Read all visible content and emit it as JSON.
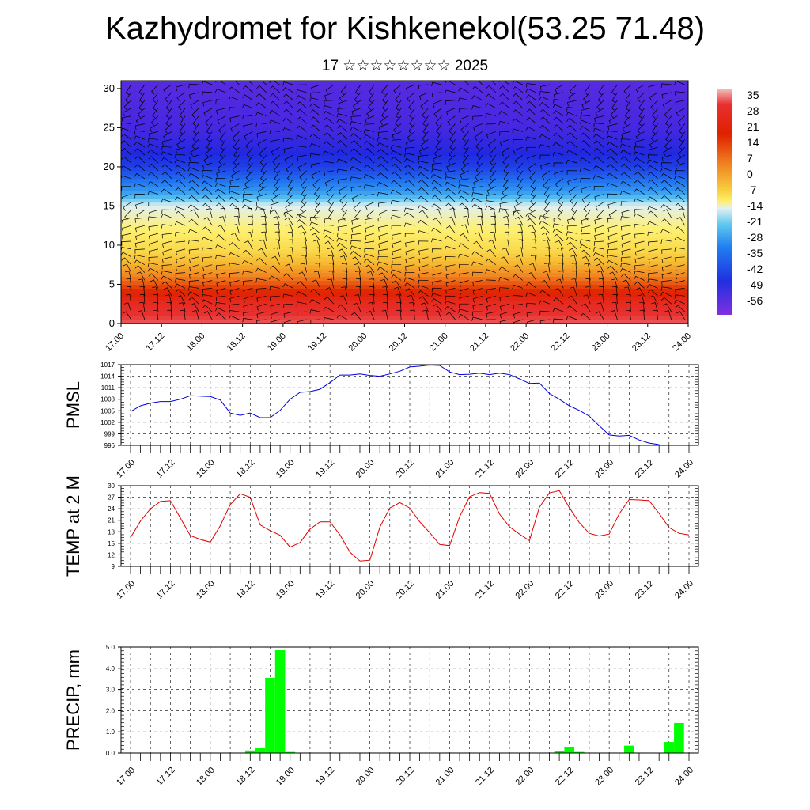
{
  "page": {
    "title": "Kazhydromet for Kishkenekol(53.25 71.48)",
    "subtitle": "17 ☆☆☆☆☆☆☆☆ 2025"
  },
  "colors": {
    "pressure_line": "#0000dd",
    "temperature_line": "#e00000",
    "precip_bar": "#00ff00",
    "wind_barbs": "#000000"
  },
  "chart_data": [
    {
      "type": "heatmap",
      "name": "cross-section",
      "description_values": "temperature colour field with wind barbs",
      "x_ticks": [
        "17.00",
        "17.12",
        "18.00",
        "18.12",
        "19.00",
        "19.12",
        "20.00",
        "20.12",
        "21.00",
        "21.12",
        "22.00",
        "22.12",
        "23.00",
        "23.12",
        "24.00"
      ],
      "y_ticks": [
        0,
        5,
        10,
        15,
        20,
        25,
        30
      ],
      "ylim": [
        0,
        31
      ],
      "colorbar_labels": [
        "35",
        "28",
        "21",
        "14",
        "7",
        "0",
        "-7",
        "-14",
        "-21",
        "-28",
        "-35",
        "-42",
        "-49",
        "-56"
      ],
      "temperature_profile": [
        {
          "level": 0,
          "value": 30
        },
        {
          "level": 3,
          "value": 25
        },
        {
          "level": 6,
          "value": 14
        },
        {
          "level": 9,
          "value": 2
        },
        {
          "level": 12,
          "value": -7
        },
        {
          "level": 15,
          "value": -14
        },
        {
          "level": 16.5,
          "value": -25
        },
        {
          "level": 19,
          "value": -38
        },
        {
          "level": 22,
          "value": -50
        },
        {
          "level": 25,
          "value": -56
        },
        {
          "level": 31,
          "value": -58
        }
      ]
    },
    {
      "type": "line",
      "name": "pmsl",
      "ylabel": "PMSL",
      "x_ticks": [
        "17.00",
        "17.12",
        "18.00",
        "18.12",
        "19.00",
        "19.12",
        "20.00",
        "20.12",
        "21.00",
        "21.12",
        "22.00",
        "22.12",
        "23.00",
        "23.12",
        "24.00"
      ],
      "y_ticks": [
        996,
        999,
        1002,
        1005,
        1008,
        1011,
        1014,
        1017
      ],
      "ylim": [
        996,
        1017
      ],
      "x": [
        0,
        3,
        6,
        9,
        12,
        15,
        18,
        21,
        24,
        27,
        30,
        33,
        36,
        39,
        42,
        45,
        48,
        51,
        54,
        57,
        60,
        63,
        66,
        69,
        72,
        75,
        78,
        81,
        84,
        87,
        90,
        93,
        96,
        99,
        102,
        105,
        108,
        111,
        114,
        117,
        120,
        123,
        126,
        129,
        132,
        135,
        138,
        141,
        144,
        147,
        150,
        153,
        156,
        159,
        162,
        165,
        168
      ],
      "values": [
        1004.8,
        1006.3,
        1007.0,
        1007.4,
        1007.4,
        1008.0,
        1008.9,
        1008.8,
        1008.7,
        1007.8,
        1004.4,
        1003.8,
        1004.4,
        1003.2,
        1003.2,
        1005.1,
        1008.0,
        1009.8,
        1010.0,
        1010.6,
        1012.3,
        1014.3,
        1014.3,
        1014.6,
        1014.2,
        1014.0,
        1014.6,
        1015.3,
        1016.4,
        1016.6,
        1016.9,
        1016.8,
        1015.1,
        1014.4,
        1014.5,
        1014.8,
        1014.4,
        1014.8,
        1014.4,
        1013.3,
        1012.1,
        1012.2,
        1009.5,
        1008.0,
        1006.3,
        1005.1,
        1003.6,
        1001.1,
        998.7,
        998.4,
        998.6,
        997.4,
        996.6,
        996.2,
        null,
        null,
        null
      ]
    },
    {
      "type": "line",
      "name": "temp2m",
      "ylabel": "TEMP at 2 M",
      "x_ticks": [
        "17.00",
        "17.12",
        "18.00",
        "18.12",
        "19.00",
        "19.12",
        "20.00",
        "20.12",
        "21.00",
        "21.12",
        "22.00",
        "22.12",
        "23.00",
        "23.12",
        "24.00"
      ],
      "y_ticks": [
        9,
        12,
        15,
        18,
        21,
        24,
        27,
        30
      ],
      "ylim": [
        9,
        30
      ],
      "x": [
        0,
        3,
        6,
        9,
        12,
        15,
        18,
        21,
        24,
        27,
        30,
        33,
        36,
        39,
        42,
        45,
        48,
        51,
        54,
        57,
        60,
        63,
        66,
        69,
        72,
        75,
        78,
        81,
        84,
        87,
        90,
        93,
        96,
        99,
        102,
        105,
        108,
        111,
        114,
        117,
        120,
        123,
        126,
        129,
        132,
        135,
        138,
        141,
        144,
        147,
        150,
        153,
        156,
        159,
        162,
        165,
        168
      ],
      "values": [
        16.5,
        20.8,
        24.0,
        25.9,
        26.1,
        21.6,
        17.0,
        16.0,
        15.3,
        19.6,
        25.1,
        27.9,
        27.0,
        19.8,
        18.3,
        17.1,
        14.0,
        15.2,
        18.7,
        20.6,
        20.6,
        17.2,
        12.7,
        10.4,
        10.6,
        19.2,
        24.2,
        25.6,
        24.2,
        20.6,
        17.8,
        14.7,
        14.4,
        21.9,
        27.1,
        28.2,
        28.0,
        22.6,
        19.3,
        17.4,
        15.7,
        24.4,
        28.1,
        28.7,
        24.3,
        20.4,
        17.6,
        16.9,
        17.4,
        22.7,
        26.4,
        26.3,
        26.1,
        22.8,
        19.1,
        17.6,
        17.2
      ]
    },
    {
      "type": "bar",
      "name": "precip",
      "ylabel": "PRECIP, mm",
      "x_ticks": [
        "17.00",
        "17.12",
        "18.00",
        "18.12",
        "19.00",
        "19.12",
        "20.00",
        "20.12",
        "21.00",
        "21.12",
        "22.00",
        "22.12",
        "23.00",
        "23.12",
        "24.00"
      ],
      "y_ticks": [
        "0.0",
        "1.0",
        "2.0",
        "3.0",
        "4.0",
        "5.0"
      ],
      "ylim": [
        0,
        5
      ],
      "x": [
        0,
        3,
        6,
        9,
        12,
        15,
        18,
        21,
        24,
        27,
        30,
        33,
        36,
        39,
        42,
        45,
        48,
        51,
        54,
        57,
        60,
        63,
        66,
        69,
        72,
        75,
        78,
        81,
        84,
        87,
        90,
        93,
        96,
        99,
        102,
        105,
        108,
        111,
        114,
        117,
        120,
        123,
        126,
        129,
        132,
        135,
        138,
        141,
        144,
        147,
        150,
        153,
        156,
        159,
        162,
        165
      ],
      "values": [
        0,
        0,
        0,
        0,
        0,
        0,
        0,
        0,
        0,
        0,
        0,
        0,
        0.12,
        0.25,
        3.55,
        4.85,
        0.05,
        0,
        0,
        0,
        0,
        0,
        0,
        0,
        0,
        0,
        0,
        0,
        0,
        0,
        0,
        0,
        0.02,
        0,
        0,
        0,
        0,
        0,
        0,
        0,
        0,
        0,
        0,
        0.08,
        0.3,
        0.05,
        0,
        0,
        0,
        0,
        0.35,
        0.02,
        0,
        0,
        0.52,
        1.42
      ]
    }
  ]
}
